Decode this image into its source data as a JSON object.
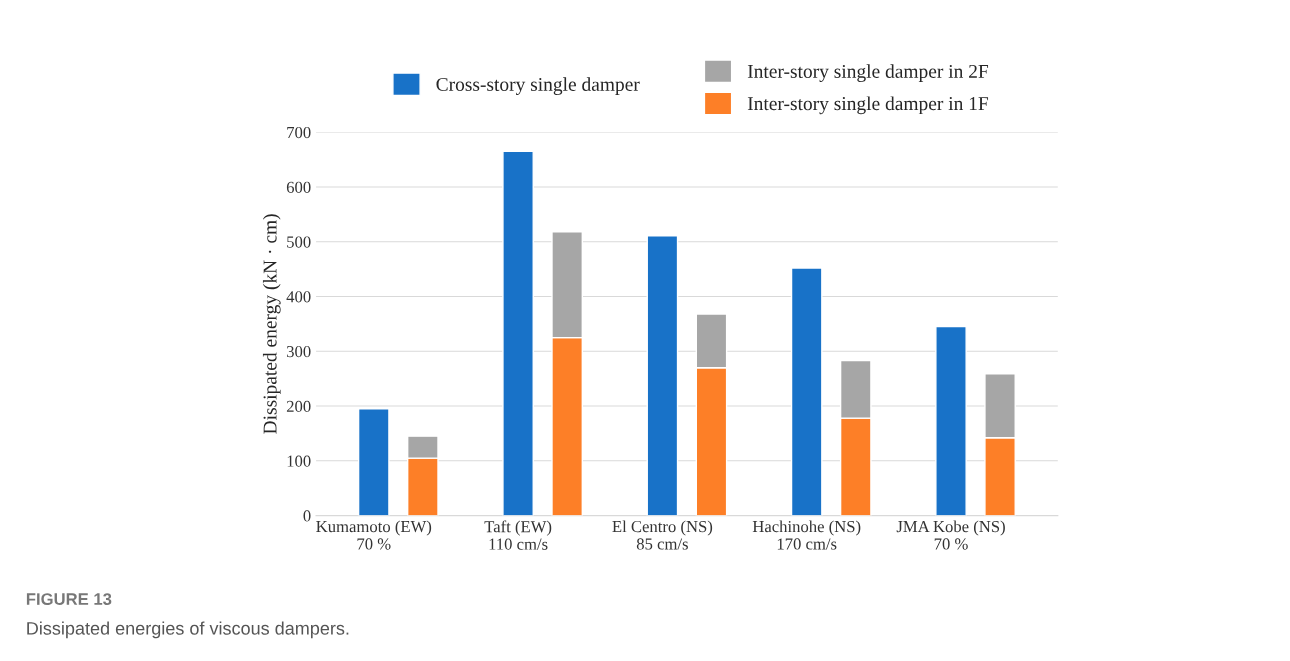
{
  "chart_data": {
    "type": "bar",
    "categories": [
      "Kumamoto (EW)\n70 %",
      null,
      "Taft (EW)\n110 cm/s",
      null,
      "El Centro (NS)\n85 cm/s",
      null,
      "Hachinohe (NS)\n170 cm/s",
      null,
      "JMA Kobe (NS)\n70 %",
      null
    ],
    "series": [
      {
        "name": "Cross-story single damper",
        "color": "#1872c8",
        "values": [
          195,
          null,
          665,
          null,
          511,
          null,
          452,
          null,
          345,
          null
        ]
      },
      {
        "name": "Inter-story single damper in 1F",
        "color": "#fd7f27",
        "values": [
          null,
          105,
          null,
          325,
          null,
          270,
          null,
          178,
          null,
          142
        ]
      },
      {
        "name": "Inter-story single damper in 2F",
        "color": "#a6a6a6",
        "values": [
          null,
          40,
          null,
          193,
          null,
          98,
          null,
          105,
          null,
          117
        ]
      }
    ],
    "stacked": true,
    "ylabel": "Dissipated energy (kN · cm)",
    "ylim": [
      0,
      700
    ],
    "yticks": [
      0,
      100,
      200,
      300,
      400,
      500,
      600,
      700
    ],
    "grid": "y",
    "legend": "top",
    "annotations": [
      "FIGURE 13",
      "Dissipated energies of viscous dampers."
    ]
  }
}
